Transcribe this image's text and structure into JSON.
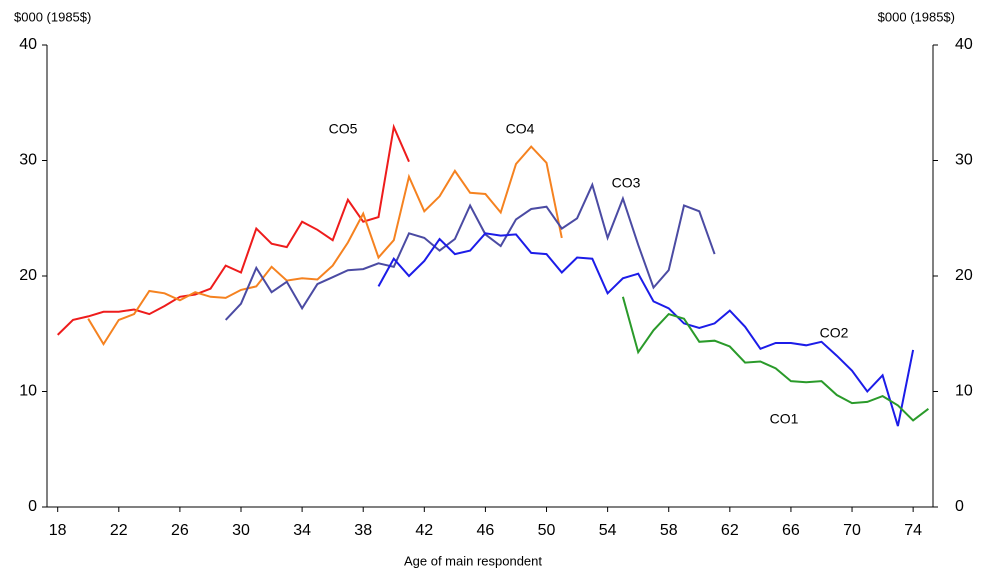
{
  "chart_data": {
    "type": "line",
    "y_label": "$000 (1985$)",
    "y2_label": "$000 (1985$)",
    "x_label": "Age of main respondent",
    "xlim": [
      17.3,
      75.3
    ],
    "xticks": [
      18,
      22,
      26,
      30,
      34,
      38,
      42,
      46,
      50,
      54,
      58,
      62,
      66,
      70,
      74
    ],
    "ylim": [
      0,
      40
    ],
    "yticks": [
      0,
      10,
      20,
      30,
      40
    ],
    "y2lim": [
      0,
      40
    ],
    "y2ticks": [
      0,
      10,
      20,
      30,
      40
    ],
    "series": [
      {
        "name": "CO5",
        "color": "#ee1c1c",
        "label_color": "#f07c20",
        "x": [
          18,
          19,
          20,
          21,
          22,
          23,
          24,
          25,
          26,
          27,
          28,
          29,
          30,
          31,
          32,
          33,
          34,
          35,
          36,
          37,
          38,
          39,
          40,
          41
        ],
        "values": [
          14.9,
          16.2,
          16.5,
          16.9,
          16.9,
          17.1,
          16.7,
          17.4,
          18.2,
          18.4,
          18.9,
          20.9,
          20.3,
          24.1,
          22.8,
          22.5,
          24.7,
          24.0,
          23.1,
          26.6,
          24.7,
          25.1,
          32.9,
          29.9
        ]
      },
      {
        "name": "CO4",
        "color": "#f58220",
        "label_color": "#f07c20",
        "x": [
          20,
          21,
          22,
          23,
          24,
          25,
          26,
          27,
          28,
          29,
          30,
          31,
          32,
          33,
          34,
          35,
          36,
          37,
          38,
          39,
          40,
          41,
          42,
          43,
          44,
          45,
          46,
          47,
          48,
          49,
          50,
          51
        ],
        "values": [
          16.3,
          14.1,
          16.2,
          16.7,
          18.7,
          18.5,
          17.9,
          18.6,
          18.2,
          18.1,
          18.8,
          19.1,
          20.8,
          19.6,
          19.8,
          19.7,
          20.9,
          22.9,
          25.4,
          21.6,
          23.1,
          28.6,
          25.6,
          26.9,
          29.1,
          27.2,
          27.1,
          25.5,
          29.7,
          31.2,
          29.8,
          23.3
        ]
      },
      {
        "name": "CO3",
        "color": "#4b4ba3",
        "label_color": "#2f5f8f",
        "x": [
          29,
          30,
          31,
          32,
          33,
          34,
          35,
          36,
          37,
          38,
          39,
          40,
          41,
          42,
          43,
          44,
          45,
          46,
          47,
          48,
          49,
          50,
          51,
          52,
          53,
          54,
          55,
          56,
          57,
          58,
          59,
          60,
          61
        ],
        "values": [
          16.2,
          17.6,
          20.7,
          18.6,
          19.5,
          17.2,
          19.3,
          19.9,
          20.5,
          20.6,
          21.1,
          20.8,
          23.7,
          23.3,
          22.2,
          23.2,
          26.1,
          23.6,
          22.6,
          24.9,
          25.8,
          26.0,
          24.1,
          25.0,
          27.9,
          23.3,
          26.7,
          22.7,
          19.0,
          20.5,
          26.1,
          25.6,
          21.9
        ]
      },
      {
        "name": "CO2",
        "color": "#1c1ce8",
        "label_color": "#2a2ae0",
        "x": [
          39,
          40,
          41,
          42,
          43,
          44,
          45,
          46,
          47,
          48,
          49,
          50,
          51,
          52,
          53,
          54,
          55,
          56,
          57,
          58,
          59,
          60,
          61,
          62,
          63,
          64,
          65,
          66,
          67,
          68,
          69,
          70,
          71,
          72,
          73,
          74
        ],
        "values": [
          19.1,
          21.5,
          20.0,
          21.3,
          23.2,
          21.9,
          22.2,
          23.7,
          23.5,
          23.6,
          22.0,
          21.9,
          20.3,
          21.6,
          21.5,
          18.5,
          19.8,
          20.2,
          17.8,
          17.2,
          15.9,
          15.5,
          15.9,
          17.0,
          15.6,
          13.7,
          14.2,
          14.2,
          14.0,
          14.3,
          13.1,
          11.8,
          10.0,
          11.4,
          7.0,
          13.6
        ]
      },
      {
        "name": "CO1",
        "color": "#2a9a2a",
        "label_color": "#2a9a2a",
        "x": [
          55,
          56,
          57,
          58,
          59,
          60,
          61,
          62,
          63,
          64,
          65,
          66,
          67,
          68,
          69,
          70,
          71,
          72,
          73,
          74,
          75
        ],
        "values": [
          18.2,
          13.4,
          15.3,
          16.7,
          16.3,
          14.3,
          14.4,
          13.9,
          12.5,
          12.6,
          12.0,
          10.9,
          10.8,
          10.9,
          9.7,
          9.0,
          9.1,
          9.6,
          8.8,
          7.5,
          8.5
        ]
      }
    ]
  }
}
